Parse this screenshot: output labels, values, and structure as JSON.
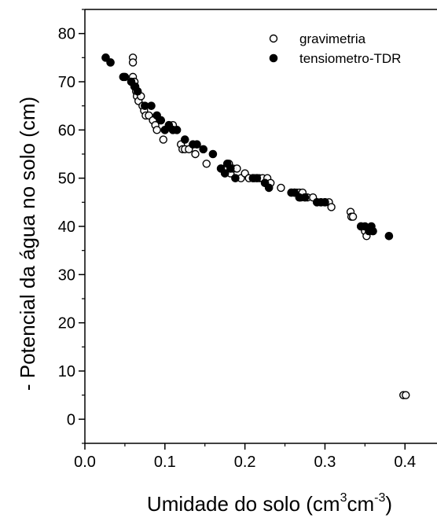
{
  "chart_data": {
    "type": "scatter",
    "xlabel_main": "Umidade do solo (cm",
    "xlabel_sup1": "3",
    "xlabel_mid": "cm",
    "xlabel_sup2": "-3",
    "xlabel_end": ")",
    "ylabel": "- Potencial da água no solo (cm)",
    "xlim": [
      0.0,
      0.44
    ],
    "ylim": [
      -5,
      85
    ],
    "x_ticks": [
      "0.0",
      "0.1",
      "0.2",
      "0.3",
      "0.4"
    ],
    "y_ticks": [
      "0",
      "10",
      "20",
      "30",
      "40",
      "50",
      "60",
      "70",
      "80"
    ],
    "legend_position": "top-right",
    "series": [
      {
        "name": "gravimetria",
        "marker": "open-circle",
        "color": "#000000",
        "points": [
          [
            0.06,
            75
          ],
          [
            0.06,
            74
          ],
          [
            0.06,
            71
          ],
          [
            0.062,
            70
          ],
          [
            0.063,
            69
          ],
          [
            0.064,
            68
          ],
          [
            0.065,
            67
          ],
          [
            0.067,
            66
          ],
          [
            0.07,
            67
          ],
          [
            0.072,
            65
          ],
          [
            0.074,
            64
          ],
          [
            0.076,
            63
          ],
          [
            0.08,
            63
          ],
          [
            0.085,
            62
          ],
          [
            0.088,
            61
          ],
          [
            0.09,
            60
          ],
          [
            0.095,
            62
          ],
          [
            0.098,
            58
          ],
          [
            0.11,
            61
          ],
          [
            0.12,
            57
          ],
          [
            0.122,
            56
          ],
          [
            0.125,
            56
          ],
          [
            0.13,
            56
          ],
          [
            0.138,
            55
          ],
          [
            0.152,
            53
          ],
          [
            0.175,
            52
          ],
          [
            0.18,
            53
          ],
          [
            0.182,
            51
          ],
          [
            0.185,
            52
          ],
          [
            0.19,
            52
          ],
          [
            0.195,
            50
          ],
          [
            0.2,
            51
          ],
          [
            0.205,
            50
          ],
          [
            0.212,
            50
          ],
          [
            0.218,
            50
          ],
          [
            0.222,
            50
          ],
          [
            0.228,
            50
          ],
          [
            0.232,
            49
          ],
          [
            0.245,
            48
          ],
          [
            0.262,
            47
          ],
          [
            0.265,
            47
          ],
          [
            0.268,
            47
          ],
          [
            0.27,
            46
          ],
          [
            0.272,
            47
          ],
          [
            0.278,
            46
          ],
          [
            0.285,
            46
          ],
          [
            0.3,
            45
          ],
          [
            0.305,
            45
          ],
          [
            0.308,
            44
          ],
          [
            0.332,
            43
          ],
          [
            0.333,
            42
          ],
          [
            0.335,
            42
          ],
          [
            0.345,
            40
          ],
          [
            0.35,
            39
          ],
          [
            0.352,
            38
          ],
          [
            0.398,
            5
          ],
          [
            0.401,
            5
          ]
        ]
      },
      {
        "name": "tensiometro-TDR",
        "marker": "filled-circle",
        "color": "#000000",
        "points": [
          [
            0.026,
            75
          ],
          [
            0.032,
            74
          ],
          [
            0.048,
            71
          ],
          [
            0.05,
            71
          ],
          [
            0.058,
            70
          ],
          [
            0.062,
            69
          ],
          [
            0.066,
            68
          ],
          [
            0.075,
            65
          ],
          [
            0.083,
            65
          ],
          [
            0.09,
            63
          ],
          [
            0.095,
            62
          ],
          [
            0.1,
            60
          ],
          [
            0.105,
            61
          ],
          [
            0.11,
            60
          ],
          [
            0.115,
            60
          ],
          [
            0.125,
            58
          ],
          [
            0.135,
            57
          ],
          [
            0.14,
            57
          ],
          [
            0.148,
            56
          ],
          [
            0.16,
            55
          ],
          [
            0.17,
            52
          ],
          [
            0.175,
            51
          ],
          [
            0.178,
            53
          ],
          [
            0.182,
            52
          ],
          [
            0.188,
            50
          ],
          [
            0.21,
            50
          ],
          [
            0.215,
            50
          ],
          [
            0.225,
            49
          ],
          [
            0.23,
            48
          ],
          [
            0.258,
            47
          ],
          [
            0.262,
            47
          ],
          [
            0.268,
            46
          ],
          [
            0.275,
            46
          ],
          [
            0.29,
            45
          ],
          [
            0.295,
            45
          ],
          [
            0.3,
            45
          ],
          [
            0.345,
            40
          ],
          [
            0.35,
            40
          ],
          [
            0.355,
            39
          ],
          [
            0.358,
            40
          ],
          [
            0.36,
            39
          ],
          [
            0.38,
            38
          ]
        ]
      }
    ]
  }
}
